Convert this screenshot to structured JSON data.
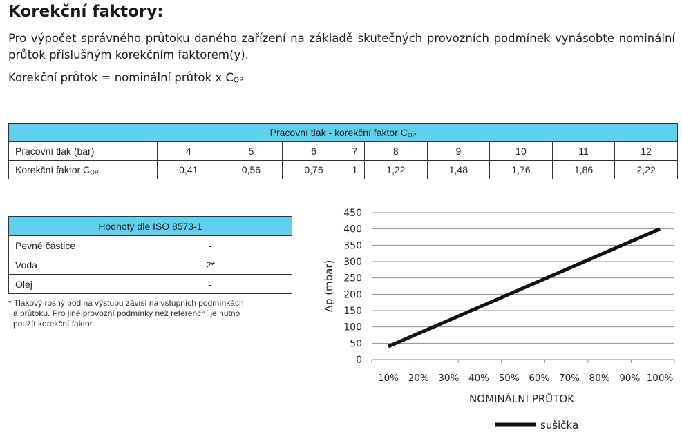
{
  "heading": "Korekční faktory:",
  "intro": "Pro výpočet správného průtoku daného zařízení na základě skutečných provozních podmínek vynásobte nominální průtok příslušným korekčním faktorem(y).",
  "formula": {
    "text": "Korekční průtok = nominální průtok x C",
    "sub": "OP"
  },
  "pressure_table": {
    "title": "Pracovní tlak - korekční faktor C",
    "title_sub": "OP",
    "row1_label": "Pracovní tlak (bar)",
    "row2_label": "Korekční faktor C",
    "row2_label_sub": "OP",
    "pressures": [
      "4",
      "5",
      "6",
      "7",
      "8",
      "9",
      "10",
      "11",
      "12"
    ],
    "factors": [
      "0,41",
      "0,56",
      "0,76",
      "1",
      "1,22",
      "1,48",
      "1,76",
      "1,86",
      "2,22"
    ]
  },
  "iso_table": {
    "title": "Hodnoty dle ISO 8573-1",
    "rows": [
      {
        "label": "Pevné částice",
        "value": "-"
      },
      {
        "label": "Voda",
        "value": "2*"
      },
      {
        "label": "Olej",
        "value": "-"
      }
    ]
  },
  "note": {
    "line1": "* Tlakový rosný bod na výstupu závisí na vstupních podmínkách",
    "line2": "a průtoku. Pro jiné provozní podmínky než referenční je nutno",
    "line3": "použít korekční faktor."
  },
  "chart_data": {
    "type": "line",
    "xlabel": "NOMINÁLNÍ PRŮTOK",
    "ylabel": "Δp (mbar)",
    "x_ticks": [
      "10%",
      "20%",
      "30%",
      "40%",
      "50%",
      "60%",
      "70%",
      "80%",
      "90%",
      "100%"
    ],
    "y_ticks": [
      0,
      50,
      100,
      150,
      200,
      250,
      300,
      350,
      400,
      450
    ],
    "ylim": [
      0,
      450
    ],
    "xlim": [
      10,
      100
    ],
    "grid": "horizontal",
    "legend": "bottom-right",
    "series": [
      {
        "name": "sušička",
        "color": "#111111",
        "x": [
          10,
          100
        ],
        "y": [
          40,
          400
        ]
      }
    ]
  }
}
